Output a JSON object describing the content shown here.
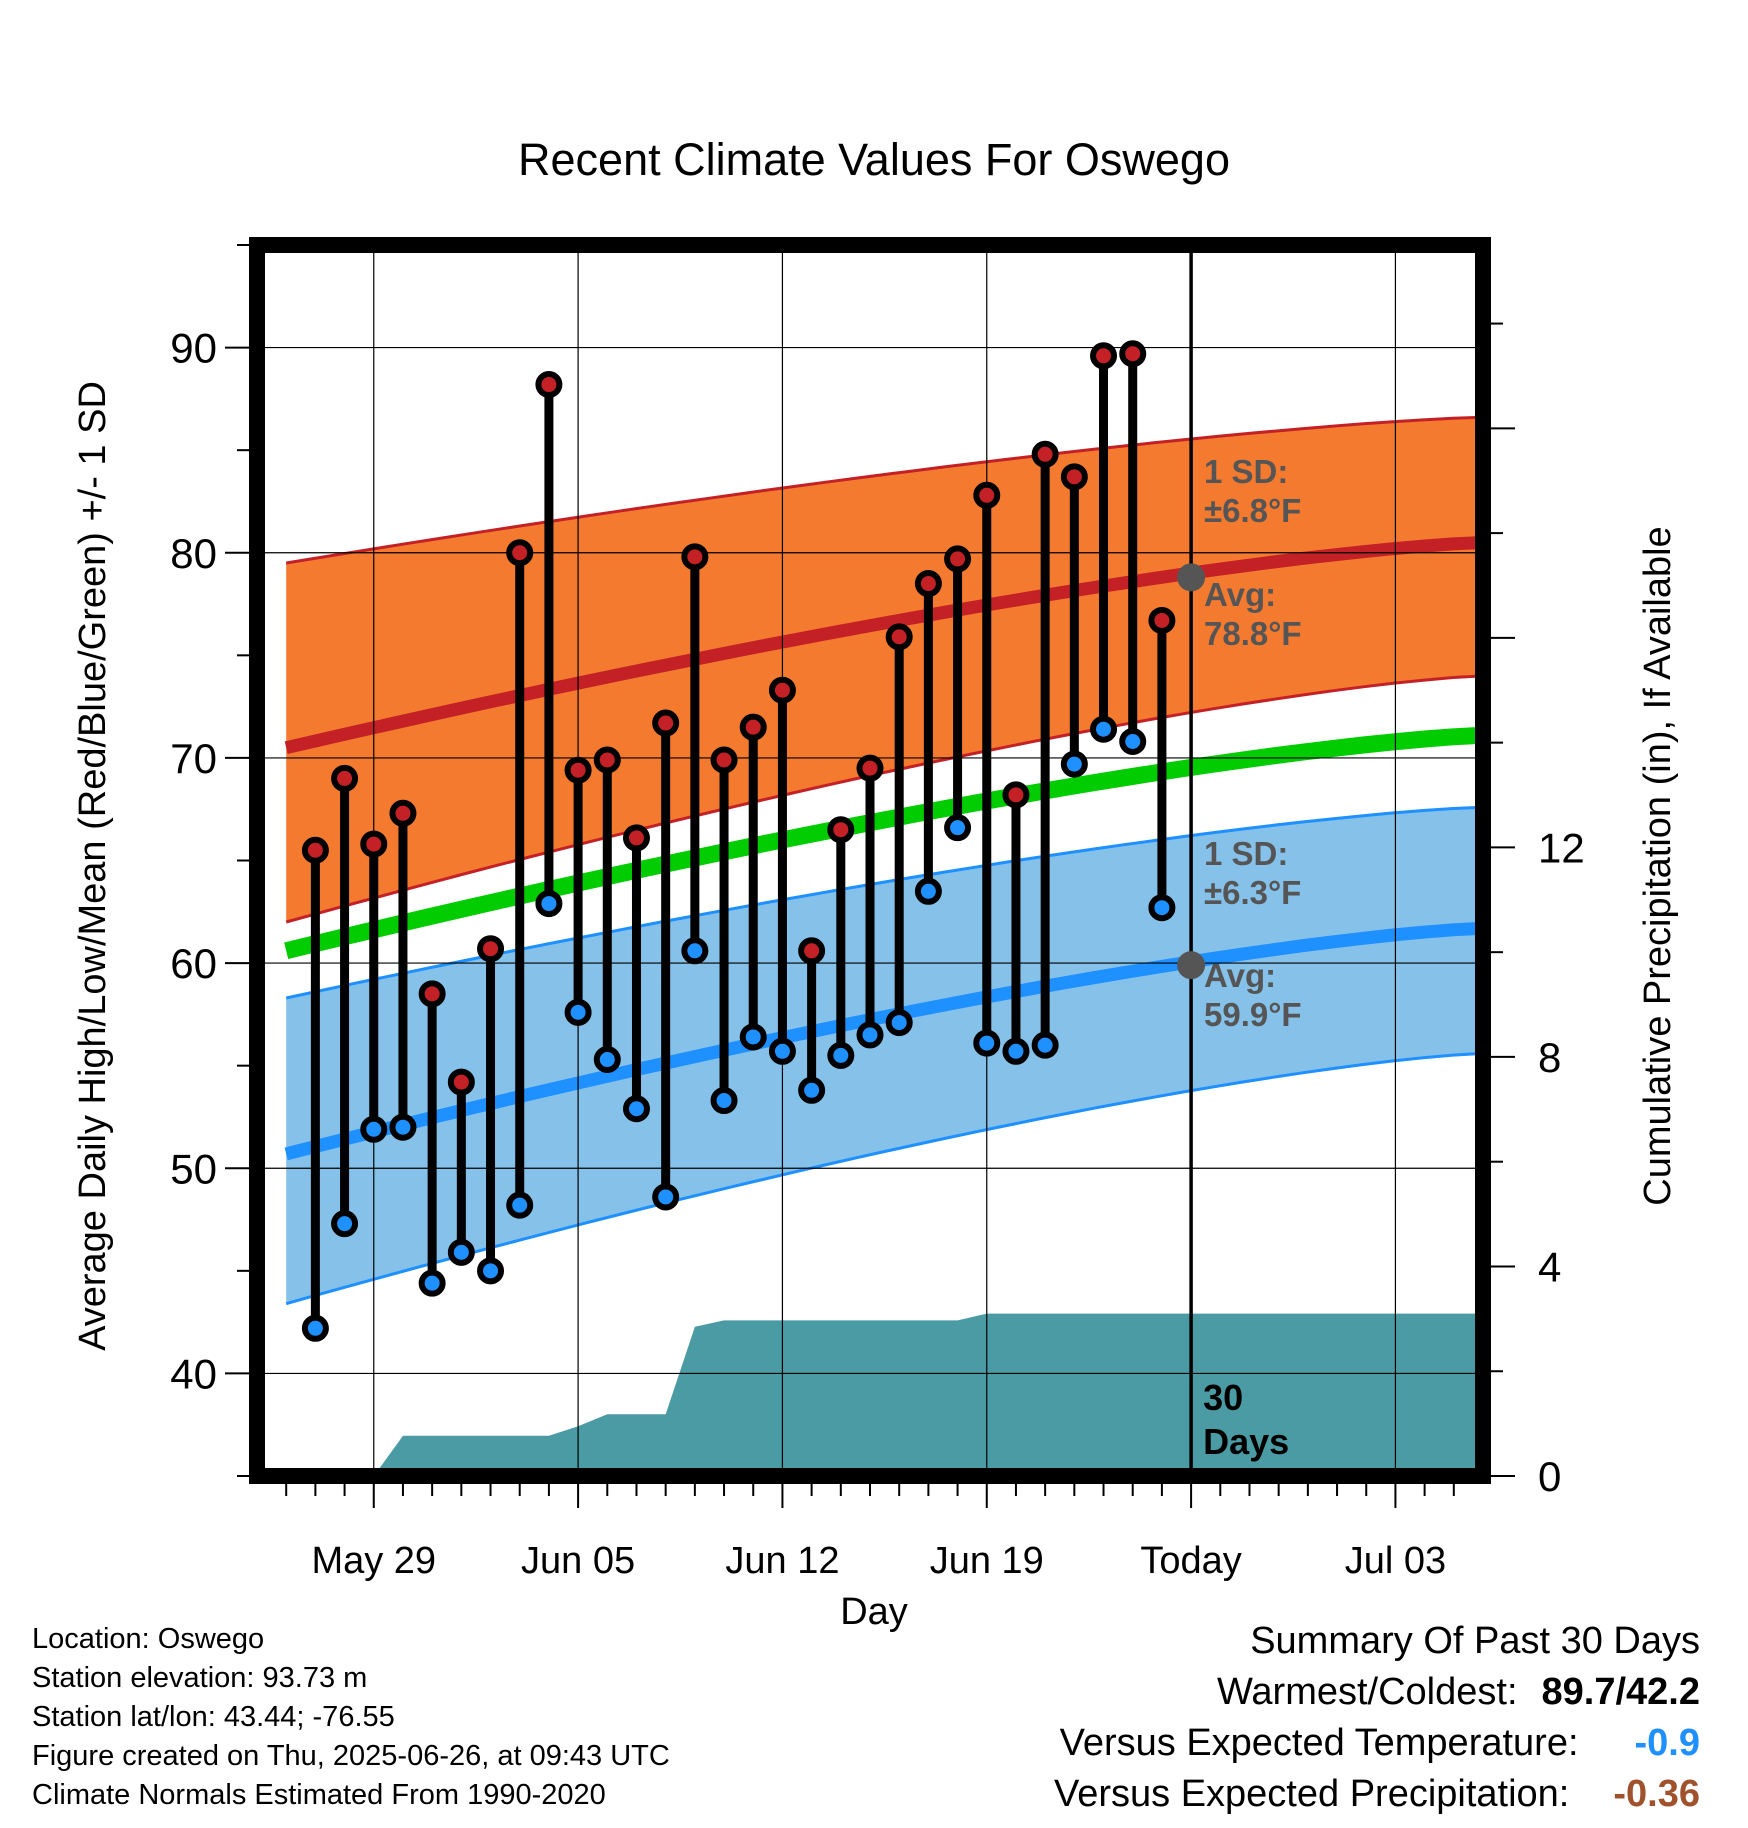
{
  "chart_data": {
    "type": "line",
    "title": "Recent Climate Values For Oswego",
    "xlabel": "Day",
    "ylabel": "Average Daily High/Low/Mean (Red/Blue/Green) +/- 1 SD",
    "y2label": "Cumulative Precipitation (in), If Available",
    "xlim": [
      "2025-05-25",
      "2025-07-06"
    ],
    "ylim": [
      35,
      95
    ],
    "y2lim": [
      0,
      23.5
    ],
    "yticks": [
      40,
      50,
      60,
      70,
      80,
      90
    ],
    "y2ticks": [
      0,
      4,
      8,
      12
    ],
    "xticks": [
      "2025-05-29",
      "2025-06-05",
      "2025-06-12",
      "2025-06-19",
      "2025-06-26",
      "2025-07-03"
    ],
    "xticklabels": [
      "May 29",
      "Jun 05",
      "Jun 12",
      "Jun 19",
      "Today",
      "Jul 03"
    ],
    "grid": true,
    "today": "2025-06-26",
    "today_label": [
      "30",
      "Days"
    ],
    "colors": {
      "high": "#c42127",
      "low": "#1e90ff",
      "mean": "#00cc00",
      "high_band": "#f47a30",
      "low_band": "#85c1e9",
      "precip": "#4a9ba4",
      "annotation": "#555555"
    },
    "normals": {
      "dates": [
        "2025-05-26",
        "2025-07-06"
      ],
      "avg_high": [
        70.5,
        80.5
      ],
      "high_upper": [
        79.5,
        86.6
      ],
      "high_lower": [
        62.0,
        74.0
      ],
      "avg_low": [
        50.7,
        61.7
      ],
      "low_upper": [
        58.3,
        67.6
      ],
      "low_lower": [
        43.4,
        55.6
      ],
      "avg_mean": [
        60.6,
        71.1
      ]
    },
    "annotations": {
      "high_sd": [
        "1 SD:",
        "±6.8°F"
      ],
      "high_avg": [
        "Avg:",
        "78.8°F"
      ],
      "low_sd": [
        "1 SD:",
        "±6.3°F"
      ],
      "low_avg": [
        "Avg:",
        "59.9°F"
      ]
    },
    "series": [
      {
        "name": "Daily High",
        "x": [
          "2025-05-27",
          "2025-05-28",
          "2025-05-29",
          "2025-05-30",
          "2025-05-31",
          "2025-06-01",
          "2025-06-02",
          "2025-06-03",
          "2025-06-04",
          "2025-06-05",
          "2025-06-06",
          "2025-06-07",
          "2025-06-08",
          "2025-06-09",
          "2025-06-10",
          "2025-06-11",
          "2025-06-12",
          "2025-06-13",
          "2025-06-14",
          "2025-06-15",
          "2025-06-16",
          "2025-06-17",
          "2025-06-18",
          "2025-06-19",
          "2025-06-20",
          "2025-06-21",
          "2025-06-22",
          "2025-06-23",
          "2025-06-24",
          "2025-06-25"
        ],
        "values": [
          65.5,
          69.0,
          65.8,
          67.3,
          58.5,
          54.2,
          60.7,
          80.0,
          88.2,
          69.4,
          69.9,
          66.1,
          71.7,
          79.8,
          69.9,
          71.5,
          73.3,
          60.6,
          66.5,
          69.5,
          75.9,
          78.5,
          79.7,
          82.8,
          68.2,
          84.8,
          83.7,
          89.6,
          89.7,
          76.7
        ]
      },
      {
        "name": "Daily Low",
        "x": [
          "2025-05-27",
          "2025-05-28",
          "2025-05-29",
          "2025-05-30",
          "2025-05-31",
          "2025-06-01",
          "2025-06-02",
          "2025-06-03",
          "2025-06-04",
          "2025-06-05",
          "2025-06-06",
          "2025-06-07",
          "2025-06-08",
          "2025-06-09",
          "2025-06-10",
          "2025-06-11",
          "2025-06-12",
          "2025-06-13",
          "2025-06-14",
          "2025-06-15",
          "2025-06-16",
          "2025-06-17",
          "2025-06-18",
          "2025-06-19",
          "2025-06-20",
          "2025-06-21",
          "2025-06-22",
          "2025-06-23",
          "2025-06-24",
          "2025-06-25"
        ],
        "values": [
          42.2,
          47.3,
          51.9,
          52.0,
          44.4,
          45.9,
          45.0,
          48.2,
          62.9,
          57.6,
          55.3,
          52.9,
          48.6,
          60.6,
          53.3,
          56.4,
          55.7,
          53.8,
          55.5,
          56.5,
          57.1,
          63.5,
          66.6,
          56.1,
          55.7,
          56.0,
          69.7,
          71.4,
          70.8,
          62.7
        ]
      },
      {
        "name": "Cumulative Precipitation",
        "x": [
          "2025-05-29",
          "2025-05-30",
          "2025-06-02",
          "2025-06-04",
          "2025-06-05",
          "2025-06-06",
          "2025-06-07",
          "2025-06-08",
          "2025-06-09",
          "2025-06-10",
          "2025-06-13",
          "2025-06-18",
          "2025-06-19",
          "2025-06-26",
          "2025-07-06"
        ],
        "values": [
          0.0,
          0.77,
          0.77,
          0.77,
          0.95,
          1.18,
          1.18,
          1.18,
          2.85,
          2.97,
          2.97,
          2.97,
          3.1,
          3.1,
          3.1
        ]
      }
    ]
  },
  "footer": {
    "location": "Location: Oswego",
    "elevation": "Station elevation: 93.73 m",
    "latlon": "Station lat/lon: 43.44; -76.55",
    "created": "Figure created on Thu, 2025-06-26, at 09:43 UTC",
    "normals": "Climate Normals Estimated From 1990-2020"
  },
  "summary": {
    "heading": "Summary Of Past 30 Days",
    "warm_cold_label": "Warmest/Coldest:",
    "warm_cold_value": "89.7/42.2",
    "temp_label": "Versus Expected Temperature:",
    "temp_value": "-0.9",
    "temp_color": "#1e90ff",
    "precip_label": "Versus Expected Precipitation:",
    "precip_value": "-0.36",
    "precip_color": "#a0522d"
  }
}
